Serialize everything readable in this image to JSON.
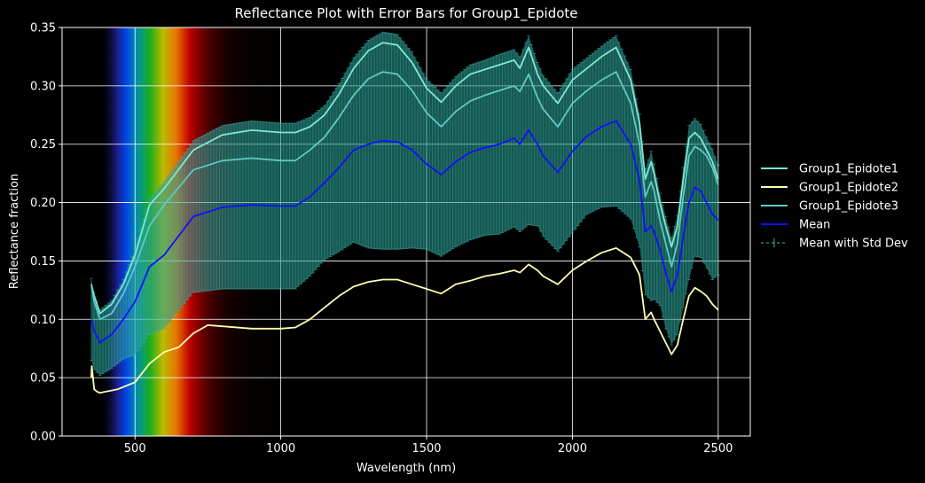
{
  "chart_data": {
    "type": "line",
    "title": "Reflectance Plot with Error Bars for Group1_Epidote",
    "xlabel": "Wavelength (nm)",
    "ylabel": "Reflectance fraction",
    "xlim": [
      250,
      2610
    ],
    "ylim": [
      0,
      0.35
    ],
    "xticks": [
      "500",
      "1000",
      "1500",
      "2000",
      "2500"
    ],
    "xtick_values": [
      500,
      1000,
      1500,
      2000,
      2500
    ],
    "yticks": [
      "0.00",
      "0.05",
      "0.10",
      "0.15",
      "0.20",
      "0.25",
      "0.30",
      "0.35"
    ],
    "ytick_values": [
      0,
      0.05,
      0.1,
      0.15,
      0.2,
      0.25,
      0.3,
      0.35
    ],
    "grid": true,
    "legend_position": "outside-right",
    "background": "#000000",
    "visible_spectrum_band": [
      380,
      950
    ],
    "series": [
      {
        "name": "Group1_Epidote1",
        "color": "#7fe8d2",
        "x": [
          350,
          360,
          380,
          420,
          460,
          500,
          550,
          600,
          700,
          800,
          900,
          1000,
          1050,
          1100,
          1150,
          1200,
          1250,
          1300,
          1350,
          1400,
          1450,
          1500,
          1550,
          1600,
          1650,
          1700,
          1750,
          1800,
          1820,
          1850,
          1880,
          1900,
          1950,
          2000,
          2050,
          2100,
          2150,
          2200,
          2230,
          2250,
          2270,
          2280,
          2300,
          2320,
          2340,
          2360,
          2380,
          2400,
          2420,
          2440,
          2460,
          2480,
          2500
        ],
        "values": [
          0.13,
          0.12,
          0.105,
          0.113,
          0.13,
          0.155,
          0.198,
          0.212,
          0.245,
          0.258,
          0.262,
          0.26,
          0.26,
          0.265,
          0.275,
          0.293,
          0.315,
          0.33,
          0.337,
          0.335,
          0.32,
          0.298,
          0.286,
          0.3,
          0.31,
          0.314,
          0.318,
          0.322,
          0.315,
          0.333,
          0.31,
          0.3,
          0.285,
          0.305,
          0.315,
          0.325,
          0.333,
          0.305,
          0.268,
          0.22,
          0.235,
          0.225,
          0.2,
          0.18,
          0.162,
          0.18,
          0.22,
          0.255,
          0.26,
          0.255,
          0.245,
          0.235,
          0.22
        ]
      },
      {
        "name": "Group1_Epidote2",
        "color": "#ffffb0",
        "x": [
          350,
          352,
          360,
          370,
          380,
          400,
          440,
          480,
          500,
          550,
          600,
          650,
          700,
          750,
          800,
          900,
          1000,
          1050,
          1100,
          1150,
          1200,
          1250,
          1300,
          1350,
          1400,
          1450,
          1500,
          1550,
          1600,
          1650,
          1700,
          1750,
          1800,
          1820,
          1850,
          1880,
          1900,
          1950,
          2000,
          2050,
          2100,
          2150,
          2200,
          2230,
          2250,
          2270,
          2280,
          2300,
          2320,
          2340,
          2360,
          2380,
          2400,
          2420,
          2440,
          2460,
          2480,
          2500
        ],
        "values": [
          0.05,
          0.06,
          0.04,
          0.038,
          0.037,
          0.038,
          0.04,
          0.044,
          0.046,
          0.062,
          0.072,
          0.076,
          0.088,
          0.095,
          0.094,
          0.092,
          0.092,
          0.093,
          0.1,
          0.11,
          0.12,
          0.128,
          0.132,
          0.134,
          0.134,
          0.13,
          0.126,
          0.122,
          0.13,
          0.133,
          0.137,
          0.139,
          0.142,
          0.14,
          0.147,
          0.142,
          0.137,
          0.13,
          0.142,
          0.15,
          0.157,
          0.161,
          0.153,
          0.138,
          0.1,
          0.106,
          0.1,
          0.09,
          0.08,
          0.07,
          0.078,
          0.1,
          0.12,
          0.127,
          0.124,
          0.12,
          0.113,
          0.108
        ]
      },
      {
        "name": "Group1_Epidote3",
        "color": "#5ec9c4",
        "x": [
          350,
          360,
          380,
          420,
          460,
          500,
          550,
          600,
          700,
          800,
          900,
          1000,
          1050,
          1100,
          1150,
          1200,
          1250,
          1300,
          1350,
          1400,
          1450,
          1500,
          1550,
          1600,
          1650,
          1700,
          1750,
          1800,
          1820,
          1850,
          1880,
          1900,
          1950,
          2000,
          2050,
          2100,
          2150,
          2200,
          2230,
          2250,
          2270,
          2280,
          2300,
          2320,
          2340,
          2360,
          2380,
          2400,
          2420,
          2440,
          2460,
          2480,
          2500
        ],
        "values": [
          0.13,
          0.115,
          0.1,
          0.105,
          0.122,
          0.145,
          0.18,
          0.198,
          0.228,
          0.236,
          0.238,
          0.236,
          0.236,
          0.245,
          0.256,
          0.273,
          0.292,
          0.306,
          0.312,
          0.31,
          0.296,
          0.277,
          0.265,
          0.278,
          0.287,
          0.292,
          0.296,
          0.3,
          0.295,
          0.31,
          0.29,
          0.28,
          0.265,
          0.285,
          0.296,
          0.305,
          0.312,
          0.285,
          0.25,
          0.205,
          0.218,
          0.21,
          0.185,
          0.165,
          0.145,
          0.165,
          0.205,
          0.24,
          0.248,
          0.245,
          0.24,
          0.23,
          0.215
        ]
      },
      {
        "name": "Mean",
        "color": "#1010ff",
        "x": [
          350,
          360,
          380,
          420,
          460,
          500,
          550,
          600,
          700,
          800,
          900,
          1000,
          1050,
          1100,
          1150,
          1200,
          1250,
          1300,
          1350,
          1400,
          1450,
          1500,
          1550,
          1600,
          1650,
          1700,
          1750,
          1800,
          1820,
          1850,
          1880,
          1900,
          1950,
          2000,
          2050,
          2100,
          2150,
          2200,
          2230,
          2250,
          2270,
          2280,
          2300,
          2320,
          2340,
          2360,
          2380,
          2400,
          2420,
          2440,
          2460,
          2480,
          2500
        ],
        "values": [
          0.1,
          0.09,
          0.08,
          0.087,
          0.1,
          0.115,
          0.145,
          0.155,
          0.188,
          0.196,
          0.198,
          0.197,
          0.197,
          0.205,
          0.217,
          0.23,
          0.245,
          0.25,
          0.253,
          0.252,
          0.245,
          0.233,
          0.224,
          0.235,
          0.243,
          0.247,
          0.25,
          0.255,
          0.25,
          0.262,
          0.25,
          0.24,
          0.226,
          0.244,
          0.257,
          0.265,
          0.27,
          0.25,
          0.219,
          0.175,
          0.18,
          0.175,
          0.16,
          0.14,
          0.124,
          0.138,
          0.17,
          0.2,
          0.213,
          0.21,
          0.2,
          0.19,
          0.185
        ]
      }
    ],
    "error_series": {
      "name": "Mean with Std Dev",
      "color": "#2a9d94",
      "x": [
        350,
        360,
        380,
        420,
        460,
        500,
        550,
        600,
        700,
        800,
        900,
        1000,
        1050,
        1100,
        1150,
        1200,
        1250,
        1300,
        1350,
        1400,
        1450,
        1500,
        1550,
        1600,
        1650,
        1700,
        1750,
        1800,
        1820,
        1850,
        1880,
        1900,
        1950,
        2000,
        2050,
        2100,
        2150,
        2200,
        2230,
        2250,
        2270,
        2280,
        2300,
        2320,
        2340,
        2360,
        2380,
        2400,
        2420,
        2440,
        2460,
        2480,
        2500
      ],
      "upper": [
        0.135,
        0.123,
        0.108,
        0.116,
        0.134,
        0.16,
        0.203,
        0.218,
        0.253,
        0.266,
        0.27,
        0.268,
        0.268,
        0.273,
        0.283,
        0.302,
        0.324,
        0.339,
        0.346,
        0.344,
        0.329,
        0.306,
        0.294,
        0.308,
        0.318,
        0.322,
        0.327,
        0.331,
        0.325,
        0.343,
        0.32,
        0.309,
        0.294,
        0.314,
        0.324,
        0.334,
        0.343,
        0.314,
        0.276,
        0.229,
        0.244,
        0.233,
        0.208,
        0.188,
        0.17,
        0.189,
        0.23,
        0.266,
        0.272,
        0.267,
        0.256,
        0.246,
        0.232
      ],
      "lower": [
        0.065,
        0.057,
        0.052,
        0.058,
        0.066,
        0.07,
        0.087,
        0.092,
        0.123,
        0.126,
        0.126,
        0.126,
        0.126,
        0.137,
        0.151,
        0.158,
        0.166,
        0.161,
        0.16,
        0.16,
        0.161,
        0.16,
        0.154,
        0.162,
        0.168,
        0.172,
        0.173,
        0.179,
        0.175,
        0.181,
        0.18,
        0.171,
        0.158,
        0.174,
        0.19,
        0.196,
        0.197,
        0.186,
        0.162,
        0.121,
        0.116,
        0.117,
        0.112,
        0.092,
        0.078,
        0.087,
        0.11,
        0.134,
        0.154,
        0.153,
        0.144,
        0.134,
        0.138
      ]
    }
  },
  "legend": {
    "items": [
      {
        "label": "Group1_Epidote1",
        "color": "#7fe8d2"
      },
      {
        "label": "Group1_Epidote2",
        "color": "#ffffb0"
      },
      {
        "label": "Group1_Epidote3",
        "color": "#5ec9c4"
      },
      {
        "label": "Mean",
        "color": "#1010ff"
      },
      {
        "label": "Mean with Std Dev",
        "color": "#2a9d94"
      }
    ]
  }
}
